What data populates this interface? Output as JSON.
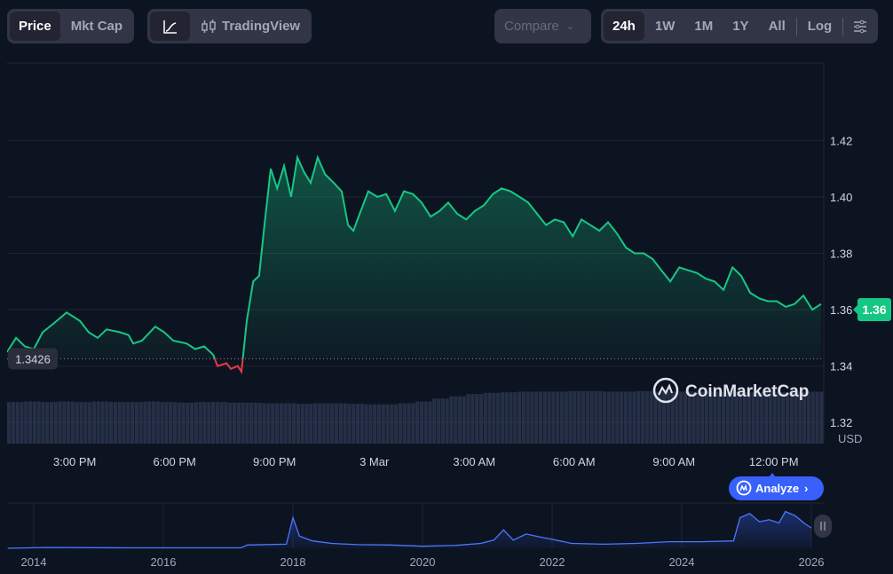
{
  "toolbar": {
    "type_tabs": [
      {
        "label": "Price",
        "active": true
      },
      {
        "label": "Mkt Cap",
        "active": false
      }
    ],
    "chart_style": {
      "line_icon": "line-chart-icon",
      "tradingview_label": "TradingView",
      "tradingview_icon": "candlestick-icon"
    },
    "compare_label": "Compare",
    "ranges": [
      {
        "label": "24h",
        "active": true
      },
      {
        "label": "1W"
      },
      {
        "label": "1M"
      },
      {
        "label": "1Y"
      },
      {
        "label": "All"
      }
    ],
    "log_label": "Log",
    "settings_icon": "sliders-icon"
  },
  "colors": {
    "up": "#16c784",
    "down": "#ea3943",
    "accent": "#3861fb",
    "bg": "#0d1421"
  },
  "watermark": "CoinMarketCap",
  "analyze_label": "Analyze",
  "currency": "USD",
  "baseline_label": "1.3426",
  "current_price_label": "1.36",
  "chart_data": {
    "type": "line",
    "title": "",
    "ylabel": "USD",
    "y_ticks": [
      "1.42",
      "1.40",
      "1.38",
      "1.36",
      "1.34",
      "1.32"
    ],
    "y_tick_values": [
      1.42,
      1.4,
      1.38,
      1.36,
      1.34,
      1.32
    ],
    "ylim": [
      1.3125,
      1.4475
    ],
    "xlim": [
      0,
      24.53
    ],
    "x_unit": "hours since ~1:00 PM",
    "x_ticks": [
      {
        "label": "3:00 PM",
        "t": 2.03
      },
      {
        "label": "6:00 PM",
        "t": 5.03
      },
      {
        "label": "9:00 PM",
        "t": 8.03
      },
      {
        "label": "3 Mar",
        "t": 11.03
      },
      {
        "label": "3:00 AM",
        "t": 14.03
      },
      {
        "label": "6:00 AM",
        "t": 17.03
      },
      {
        "label": "9:00 AM",
        "t": 20.03
      },
      {
        "label": "12:00 PM",
        "t": 23.03
      }
    ],
    "baseline": 1.3426,
    "current": 1.36,
    "series": [
      {
        "name": "Price",
        "t": [
          0,
          0.27,
          0.53,
          0.8,
          1.07,
          1.39,
          1.79,
          2.19,
          2.45,
          2.72,
          2.99,
          3.39,
          3.65,
          3.79,
          4.05,
          4.45,
          4.72,
          4.99,
          5.39,
          5.65,
          5.92,
          6.19,
          6.32,
          6.59,
          6.72,
          6.93,
          7.04,
          7.2,
          7.39,
          7.57,
          7.73,
          7.92,
          8.11,
          8.32,
          8.53,
          8.72,
          8.91,
          9.12,
          9.33,
          9.55,
          9.81,
          10.05,
          10.24,
          10.4,
          10.59,
          10.85,
          11.12,
          11.39,
          11.65,
          11.92,
          12.19,
          12.45,
          12.72,
          12.99,
          13.25,
          13.52,
          13.79,
          14.05,
          14.32,
          14.59,
          14.85,
          15.12,
          15.39,
          15.65,
          15.92,
          16.19,
          16.45,
          16.72,
          16.99,
          17.25,
          17.52,
          17.79,
          18.05,
          18.32,
          18.59,
          18.85,
          19.12,
          19.39,
          19.65,
          19.92,
          20.19,
          20.45,
          20.72,
          20.99,
          21.25,
          21.52,
          21.79,
          22.05,
          22.32,
          22.59,
          22.85,
          23.12,
          23.39,
          23.65,
          23.92,
          24.19,
          24.45
        ],
        "values": [
          1.345,
          1.35,
          1.347,
          1.346,
          1.352,
          1.355,
          1.359,
          1.356,
          1.352,
          1.35,
          1.353,
          1.352,
          1.351,
          1.348,
          1.349,
          1.354,
          1.352,
          1.349,
          1.348,
          1.346,
          1.347,
          1.344,
          1.34,
          1.341,
          1.339,
          1.34,
          1.338,
          1.356,
          1.37,
          1.372,
          1.39,
          1.41,
          1.403,
          1.411,
          1.4,
          1.414,
          1.409,
          1.405,
          1.414,
          1.408,
          1.405,
          1.402,
          1.39,
          1.388,
          1.394,
          1.402,
          1.4,
          1.401,
          1.395,
          1.402,
          1.401,
          1.398,
          1.393,
          1.395,
          1.398,
          1.394,
          1.392,
          1.395,
          1.397,
          1.401,
          1.403,
          1.402,
          1.4,
          1.398,
          1.394,
          1.39,
          1.392,
          1.391,
          1.386,
          1.392,
          1.39,
          1.388,
          1.391,
          1.387,
          1.382,
          1.38,
          1.38,
          1.378,
          1.374,
          1.37,
          1.375,
          1.374,
          1.373,
          1.371,
          1.37,
          1.367,
          1.375,
          1.372,
          1.366,
          1.364,
          1.363,
          1.363,
          1.361,
          1.362,
          1.365,
          1.36,
          1.362
        ]
      }
    ],
    "volume_relative": [
      0.72,
      0.73,
      0.72,
      0.73,
      0.72,
      0.73,
      0.72,
      0.72,
      0.73,
      0.72,
      0.71,
      0.72,
      0.72,
      0.71,
      0.71,
      0.7,
      0.7,
      0.69,
      0.7,
      0.7,
      0.69,
      0.68,
      0.68,
      0.7,
      0.73,
      0.78,
      0.82,
      0.86,
      0.88,
      0.89,
      0.9,
      0.9,
      0.9,
      0.91,
      0.91,
      0.9,
      0.9,
      0.91,
      0.9,
      0.9,
      0.9,
      0.9,
      0.9,
      0.89,
      0.89,
      0.89,
      0.9,
      0.9
    ],
    "navigator": {
      "x_ticks": [
        "2014",
        "2016",
        "2018",
        "2020",
        "2022",
        "2024",
        "2026"
      ],
      "years": [
        2013.6,
        2014.2,
        2015.5,
        2017.2,
        2017.3,
        2017.9,
        2018.0,
        2018.1,
        2018.3,
        2018.6,
        2019,
        2019.5,
        2020,
        2020.5,
        2020.9,
        2021.1,
        2021.25,
        2021.4,
        2021.6,
        2021.8,
        2022,
        2022.3,
        2022.8,
        2023.3,
        2023.8,
        2024.3,
        2024.8,
        2024.9,
        2025.05,
        2025.2,
        2025.35,
        2025.5,
        2025.6,
        2025.75,
        2025.9,
        2026.0
      ],
      "values": [
        0,
        0.02,
        0.01,
        0.01,
        0.08,
        0.1,
        0.75,
        0.3,
        0.18,
        0.12,
        0.09,
        0.08,
        0.05,
        0.07,
        0.12,
        0.2,
        0.45,
        0.2,
        0.35,
        0.28,
        0.22,
        0.12,
        0.1,
        0.12,
        0.16,
        0.16,
        0.18,
        0.75,
        0.85,
        0.65,
        0.7,
        0.62,
        0.9,
        0.8,
        0.6,
        0.5
      ]
    }
  }
}
